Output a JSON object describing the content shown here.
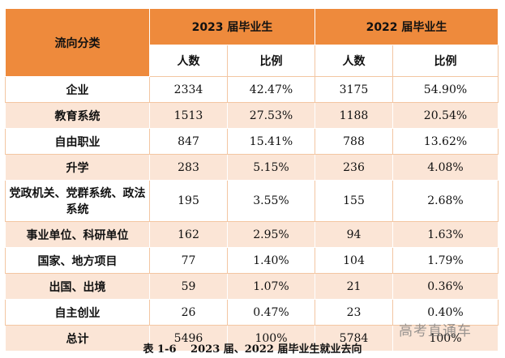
{
  "header": {
    "category": "流向分类",
    "year_2023": "2023 届毕业生",
    "year_2022": "2022 届毕业生"
  },
  "subheader": {
    "count_2023": "人数",
    "ratio_2023": "比例",
    "count_2022": "人数",
    "ratio_2022": "比例"
  },
  "rows": [
    {
      "category": "企业",
      "c2023": "2334",
      "r2023": "42.47%",
      "c2022": "3175",
      "r2022": "54.90%"
    },
    {
      "category": "教育系统",
      "c2023": "1513",
      "r2023": "27.53%",
      "c2022": "1188",
      "r2022": "20.54%"
    },
    {
      "category": "自由职业",
      "c2023": "847",
      "r2023": "15.41%",
      "c2022": "788",
      "r2022": "13.62%"
    },
    {
      "category": "升学",
      "c2023": "283",
      "r2023": "5.15%",
      "c2022": "236",
      "r2022": "4.08%"
    },
    {
      "category": "党政机关、党群系统、政法系统",
      "c2023": "195",
      "r2023": "3.55%",
      "c2022": "155",
      "r2022": "2.68%"
    },
    {
      "category": "事业单位、科研单位",
      "c2023": "162",
      "r2023": "2.95%",
      "c2022": "94",
      "r2022": "1.63%"
    },
    {
      "category": "国家、地方项目",
      "c2023": "77",
      "r2023": "1.40%",
      "c2022": "104",
      "r2022": "1.79%"
    },
    {
      "category": "出国、出境",
      "c2023": "59",
      "r2023": "1.07%",
      "c2022": "21",
      "r2022": "0.36%"
    },
    {
      "category": "自主创业",
      "c2023": "26",
      "r2023": "0.47%",
      "c2022": "23",
      "r2022": "0.40%"
    },
    {
      "category": "总计",
      "c2023": "5496",
      "r2023": "100%",
      "c2022": "5784",
      "r2022": "100%"
    }
  ],
  "caption": "表 1-6　 2023 届、2022 届毕业生就业去向",
  "watermark": "高考直通车",
  "colors": {
    "header": "#ee8a3c",
    "stripe": "#fbe5d6"
  }
}
